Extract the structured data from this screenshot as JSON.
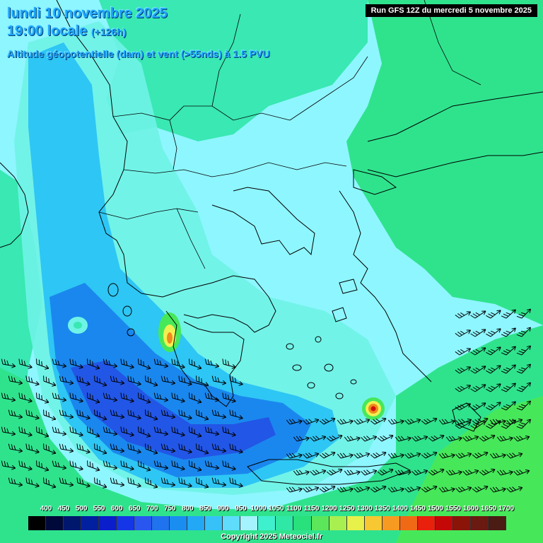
{
  "header": {
    "date_line": "lundi 10 novembre 2025",
    "time_line": "19:00 locale",
    "lead_time": "(+126h)",
    "parameter": "Altitude géopotentielle (dam) et vent (>55nds) à 1.5 PVU",
    "run": "Run GFS 12Z du mercredi 5 novembre 2025"
  },
  "legend": {
    "labels": [
      "400",
      "450",
      "500",
      "550",
      "600",
      "650",
      "700",
      "750",
      "800",
      "850",
      "900",
      "950",
      "1000",
      "1050",
      "1100",
      "1150",
      "1200",
      "1250",
      "1300",
      "1350",
      "1400",
      "1450",
      "1500",
      "1550",
      "1600",
      "1650",
      "1700"
    ],
    "colors": [
      "#000000",
      "#000a3a",
      "#00176e",
      "#0020a0",
      "#0a1ecc",
      "#1536e6",
      "#2a56f0",
      "#1f73ee",
      "#1a8ef0",
      "#22a8f5",
      "#36c2f8",
      "#5fdcfb",
      "#a4f3ff",
      "#3ff0cf",
      "#2fe8a6",
      "#28e07c",
      "#5ce65a",
      "#a8ef50",
      "#e8f04a",
      "#f7c832",
      "#f79a22",
      "#f06a16",
      "#e8200c",
      "#c40808",
      "#8a1408",
      "#6a1a10",
      "#4a1c14"
    ]
  },
  "copyright": "Copyright 2025 Meteociel.fr",
  "map_colors": {
    "base": "#8ef6ff",
    "land_green": "#39e8b2",
    "green_east": "#2fe38d",
    "green_deep": "#46e85a",
    "blue_mid": "#2ec6f4",
    "blue_deep": "#1a87ee",
    "blue_core": "#2256e6",
    "aqua": "#6ff3e6",
    "hot_yellow": "#f0f050",
    "hot_orange": "#f08a1c",
    "hot_red": "#d01010",
    "coast": "#000000"
  },
  "icons": [
    "wind-barb-icon"
  ]
}
